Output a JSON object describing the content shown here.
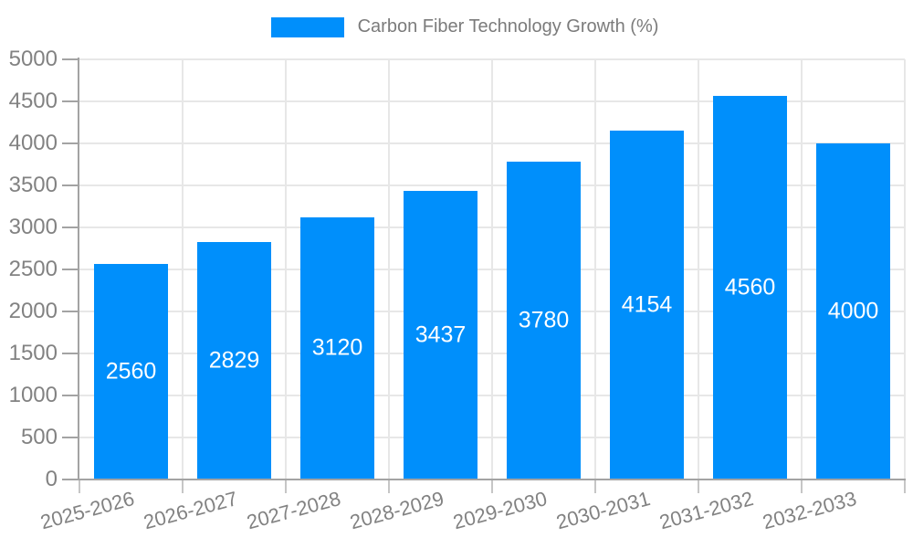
{
  "legend": {
    "label": "Carbon Fiber Technology Growth (%)",
    "swatch_color": "#008ffb"
  },
  "chart_data": {
    "type": "bar",
    "title": "Carbon Fiber Technology Growth (%)",
    "categories": [
      "2025-2026",
      "2026-2027",
      "2027-2028",
      "2028-2029",
      "2029-2030",
      "2030-2031",
      "2031-2032",
      "2032-2033"
    ],
    "values": [
      2560,
      2829,
      3120,
      3437,
      3780,
      4154,
      4560,
      4000
    ],
    "xlabel": "",
    "ylabel": "",
    "ylim": [
      0,
      5000
    ],
    "ytick_step": 500,
    "yticks": [
      0,
      500,
      1000,
      1500,
      2000,
      2500,
      3000,
      3500,
      4000,
      4500,
      5000
    ],
    "grid": true,
    "legend_position": "top-center",
    "colors": {
      "bar": "#008ffb",
      "bar_label": "#ffffff",
      "axis_label": "#828282",
      "axis_line": "#a3a3a3",
      "gridline": "#e7e7e7",
      "background": "#ffffff"
    }
  }
}
